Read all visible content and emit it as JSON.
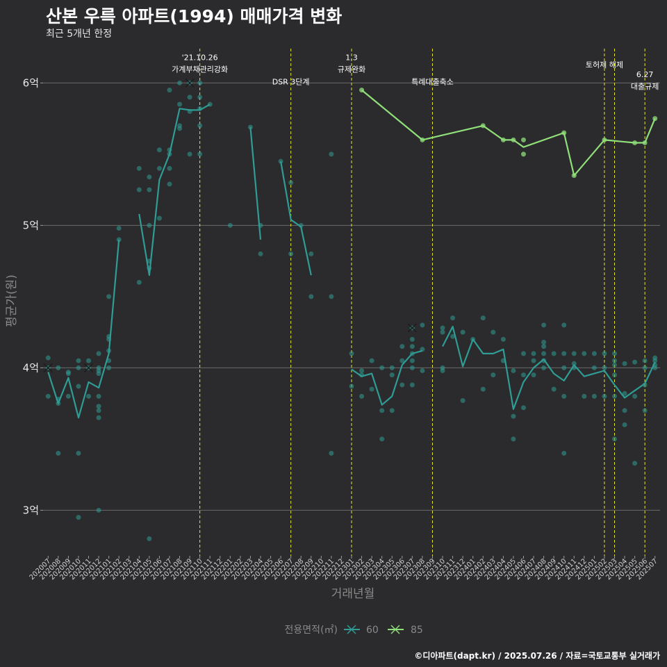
{
  "header": {
    "title": "산본 우륵 아파트(1994) 매매가격 변화",
    "subtitle": "최근 5개년 한정"
  },
  "caption": "©디아파트(dapt.kr) / 2025.07.26 / 자료=국토교통부 실거래가",
  "colors": {
    "s60": "#2f9c95",
    "s85": "#90e07a",
    "policy": "#e6e82a",
    "grid": "#6b6b6b"
  },
  "chart_data": {
    "type": "line",
    "xlabel": "거래년월",
    "ylabel": "평균가(원)",
    "ylim": [
      2.68,
      6.28
    ],
    "yticks": [
      {
        "v": 3,
        "label": "3억"
      },
      {
        "v": 4,
        "label": "4억"
      },
      {
        "v": 5,
        "label": "5억"
      },
      {
        "v": 6,
        "label": "6억"
      }
    ],
    "x": [
      "202007",
      "202008",
      "202009",
      "202010",
      "202011",
      "202012",
      "202101",
      "202102",
      "202103",
      "202104",
      "202105",
      "202106",
      "202107",
      "202108",
      "202109",
      "202110",
      "202111",
      "202112",
      "202201",
      "202202",
      "202203",
      "202204",
      "202205",
      "202206",
      "202207",
      "202208",
      "202209",
      "202210",
      "202211",
      "202212",
      "202301",
      "202302",
      "202303",
      "202304",
      "202305",
      "202306",
      "202307",
      "202308",
      "202309",
      "202310",
      "202311",
      "202312",
      "202401",
      "202402",
      "202403",
      "202404",
      "202405",
      "202406",
      "202407",
      "202408",
      "202409",
      "202410",
      "202411",
      "202412",
      "202501",
      "202502",
      "202503",
      "202504",
      "202505",
      "202506",
      "202507"
    ],
    "legend": {
      "title": "전용면적(㎡)",
      "items": [
        "60",
        "85"
      ]
    },
    "series": [
      {
        "name": "60",
        "segments": [
          [
            [
              "202007",
              3.97
            ],
            [
              "202008",
              3.75
            ],
            [
              "202009",
              3.93
            ],
            [
              "202010",
              3.65
            ],
            [
              "202011",
              3.9
            ],
            [
              "202012",
              3.86
            ],
            [
              "202101",
              4.1
            ],
            [
              "202102",
              4.9
            ]
          ],
          [
            [
              "202104",
              5.08
            ],
            [
              "202105",
              4.65
            ],
            [
              "202106",
              5.32
            ],
            [
              "202107",
              5.5
            ],
            [
              "202108",
              5.82
            ],
            [
              "202109",
              5.81
            ],
            [
              "202110",
              5.81
            ],
            [
              "202111",
              5.85
            ]
          ],
          [
            [
              "202203",
              5.69
            ],
            [
              "202204",
              4.9
            ]
          ],
          [
            [
              "202206",
              5.45
            ],
            [
              "202207",
              5.04
            ],
            [
              "202208",
              4.99
            ],
            [
              "202209",
              4.65
            ]
          ],
          [
            [
              "202301",
              3.99
            ],
            [
              "202302",
              3.94
            ],
            [
              "202303",
              3.96
            ],
            [
              "202304",
              3.74
            ],
            [
              "202305",
              3.8
            ],
            [
              "202306",
              4.02
            ],
            [
              "202307",
              4.1
            ],
            [
              "202308",
              4.12
            ]
          ],
          [
            [
              "202310",
              4.15
            ],
            [
              "202311",
              4.29
            ],
            [
              "202312",
              4.01
            ],
            [
              "202401",
              4.2
            ],
            [
              "202402",
              4.1
            ],
            [
              "202403",
              4.1
            ],
            [
              "202404",
              4.13
            ],
            [
              "202405",
              3.71
            ],
            [
              "202406",
              3.9
            ],
            [
              "202407",
              4.0
            ],
            [
              "202408",
              4.06
            ],
            [
              "202409",
              3.96
            ],
            [
              "202410",
              3.91
            ],
            [
              "202411",
              4.02
            ],
            [
              "202412",
              3.94
            ],
            [
              "202501",
              3.96
            ],
            [
              "202502",
              3.98
            ],
            [
              "202503",
              3.88
            ],
            [
              "202504",
              3.79
            ],
            [
              "202505",
              3.84
            ],
            [
              "202506",
              3.89
            ],
            [
              "202507",
              4.04
            ]
          ]
        ],
        "points": [
          [
            "202007",
            4.07
          ],
          [
            "202007",
            4.0
          ],
          [
            "202007",
            3.8
          ],
          [
            "202008",
            4.0
          ],
          [
            "202008",
            3.78
          ],
          [
            "202008",
            3.75
          ],
          [
            "202008",
            3.4
          ],
          [
            "202009",
            3.97
          ],
          [
            "202009",
            3.96
          ],
          [
            "202009",
            3.8
          ],
          [
            "202010",
            4.05
          ],
          [
            "202010",
            4.0
          ],
          [
            "202010",
            3.87
          ],
          [
            "202010",
            3.4
          ],
          [
            "202010",
            2.95
          ],
          [
            "202011",
            4.05
          ],
          [
            "202011",
            4.0
          ],
          [
            "202011",
            3.8
          ],
          [
            "202012",
            4.1
          ],
          [
            "202012",
            4.0
          ],
          [
            "202012",
            3.98
          ],
          [
            "202012",
            3.96
          ],
          [
            "202012",
            3.8
          ],
          [
            "202012",
            3.73
          ],
          [
            "202012",
            3.7
          ],
          [
            "202012",
            3.65
          ],
          [
            "202012",
            3.0
          ],
          [
            "202101",
            4.5
          ],
          [
            "202101",
            4.22
          ],
          [
            "202101",
            4.2
          ],
          [
            "202101",
            4.12
          ],
          [
            "202101",
            4.05
          ],
          [
            "202101",
            4.0
          ],
          [
            "202102",
            4.98
          ],
          [
            "202102",
            4.9
          ],
          [
            "202104",
            5.4
          ],
          [
            "202104",
            5.25
          ],
          [
            "202104",
            4.6
          ],
          [
            "202105",
            5.34
          ],
          [
            "202105",
            5.25
          ],
          [
            "202105",
            5.0
          ],
          [
            "202105",
            4.75
          ],
          [
            "202105",
            4.7
          ],
          [
            "202105",
            2.8
          ],
          [
            "202106",
            5.53
          ],
          [
            "202106",
            5.4
          ],
          [
            "202106",
            5.05
          ],
          [
            "202107",
            5.95
          ],
          [
            "202107",
            5.53
          ],
          [
            "202107",
            5.5
          ],
          [
            "202107",
            5.4
          ],
          [
            "202107",
            5.29
          ],
          [
            "202108",
            6.0
          ],
          [
            "202108",
            5.85
          ],
          [
            "202108",
            5.7
          ],
          [
            "202108",
            5.68
          ],
          [
            "202109",
            6.0
          ],
          [
            "202109",
            5.9
          ],
          [
            "202109",
            5.8
          ],
          [
            "202109",
            5.5
          ],
          [
            "202110",
            6.0
          ],
          [
            "202110",
            5.9
          ],
          [
            "202110",
            5.82
          ],
          [
            "202110",
            5.7
          ],
          [
            "202110",
            5.5
          ],
          [
            "202111",
            5.85
          ],
          [
            "202201",
            5.0
          ],
          [
            "202203",
            5.69
          ],
          [
            "202204",
            5.0
          ],
          [
            "202204",
            4.8
          ],
          [
            "202206",
            5.45
          ],
          [
            "202207",
            5.3
          ],
          [
            "202207",
            4.8
          ],
          [
            "202208",
            5.0
          ],
          [
            "202209",
            4.8
          ],
          [
            "202209",
            4.5
          ],
          [
            "202211",
            5.5
          ],
          [
            "202211",
            4.5
          ],
          [
            "202211",
            3.4
          ],
          [
            "202301",
            4.1
          ],
          [
            "202301",
            3.87
          ],
          [
            "202302",
            3.98
          ],
          [
            "202302",
            3.95
          ],
          [
            "202302",
            3.8
          ],
          [
            "202303",
            4.05
          ],
          [
            "202303",
            3.85
          ],
          [
            "202304",
            4.0
          ],
          [
            "202304",
            3.7
          ],
          [
            "202304",
            3.5
          ],
          [
            "202305",
            4.0
          ],
          [
            "202305",
            3.95
          ],
          [
            "202305",
            3.7
          ],
          [
            "202306",
            4.15
          ],
          [
            "202306",
            4.05
          ],
          [
            "202306",
            3.88
          ],
          [
            "202307",
            4.28
          ],
          [
            "202307",
            4.2
          ],
          [
            "202307",
            4.15
          ],
          [
            "202307",
            4.1
          ],
          [
            "202307",
            4.05
          ],
          [
            "202307",
            4.0
          ],
          [
            "202307",
            3.88
          ],
          [
            "202308",
            4.3
          ],
          [
            "202308",
            4.13
          ],
          [
            "202308",
            3.98
          ],
          [
            "202310",
            4.28
          ],
          [
            "202310",
            4.25
          ],
          [
            "202310",
            4.0
          ],
          [
            "202310",
            3.98
          ],
          [
            "202311",
            4.35
          ],
          [
            "202311",
            4.22
          ],
          [
            "202312",
            4.25
          ],
          [
            "202312",
            3.77
          ],
          [
            "202401",
            4.2
          ],
          [
            "202402",
            4.35
          ],
          [
            "202402",
            3.85
          ],
          [
            "202403",
            4.25
          ],
          [
            "202403",
            3.95
          ],
          [
            "202404",
            4.2
          ],
          [
            "202404",
            4.05
          ],
          [
            "202405",
            3.98
          ],
          [
            "202405",
            3.66
          ],
          [
            "202405",
            3.5
          ],
          [
            "202406",
            4.1
          ],
          [
            "202406",
            3.95
          ],
          [
            "202406",
            3.72
          ],
          [
            "202407",
            4.1
          ],
          [
            "202407",
            4.05
          ],
          [
            "202407",
            3.95
          ],
          [
            "202408",
            4.3
          ],
          [
            "202408",
            4.18
          ],
          [
            "202408",
            4.15
          ],
          [
            "202408",
            4.1
          ],
          [
            "202408",
            4.05
          ],
          [
            "202408",
            4.0
          ],
          [
            "202409",
            4.1
          ],
          [
            "202409",
            3.85
          ],
          [
            "202410",
            4.3
          ],
          [
            "202410",
            4.1
          ],
          [
            "202410",
            4.0
          ],
          [
            "202410",
            3.8
          ],
          [
            "202410",
            3.4
          ],
          [
            "202411",
            4.1
          ],
          [
            "202411",
            4.03
          ],
          [
            "202411",
            4.0
          ],
          [
            "202412",
            4.1
          ],
          [
            "202412",
            3.8
          ],
          [
            "202501",
            4.1
          ],
          [
            "202501",
            4.0
          ],
          [
            "202501",
            3.8
          ],
          [
            "202502",
            4.1
          ],
          [
            "202502",
            4.0
          ],
          [
            "202502",
            3.8
          ],
          [
            "202503",
            4.1
          ],
          [
            "202503",
            4.05
          ],
          [
            "202503",
            4.02
          ],
          [
            "202503",
            3.95
          ],
          [
            "202503",
            3.8
          ],
          [
            "202503",
            3.5
          ],
          [
            "202504",
            4.03
          ],
          [
            "202504",
            3.82
          ],
          [
            "202504",
            3.7
          ],
          [
            "202504",
            3.6
          ],
          [
            "202505",
            4.04
          ],
          [
            "202505",
            3.8
          ],
          [
            "202505",
            3.33
          ],
          [
            "202506",
            4.05
          ],
          [
            "202506",
            4.0
          ],
          [
            "202506",
            3.88
          ],
          [
            "202506",
            3.7
          ],
          [
            "202507",
            4.07
          ],
          [
            "202507",
            4.05
          ],
          [
            "202507",
            4.02
          ],
          [
            "202507",
            4.0
          ]
        ],
        "cross_marks": [
          [
            "202007",
            4.0
          ],
          [
            "202011",
            4.0
          ],
          [
            "202109",
            6.0
          ],
          [
            "202307",
            4.28
          ]
        ]
      },
      {
        "name": "85",
        "segments": [
          [
            [
              "202302",
              5.95
            ],
            [
              "202308",
              5.6
            ],
            [
              "202402",
              5.7
            ],
            [
              "202404",
              5.6
            ],
            [
              "202405",
              5.6
            ],
            [
              "202406",
              5.55
            ],
            [
              "202410",
              5.65
            ],
            [
              "202411",
              5.35
            ],
            [
              "202502",
              5.6
            ],
            [
              "202505",
              5.58
            ],
            [
              "202506",
              5.58
            ],
            [
              "202507",
              5.75
            ]
          ]
        ],
        "points": [
          [
            "202302",
            5.95
          ],
          [
            "202308",
            5.6
          ],
          [
            "202402",
            5.7
          ],
          [
            "202404",
            5.6
          ],
          [
            "202405",
            5.6
          ],
          [
            "202406",
            5.6
          ],
          [
            "202406",
            5.5
          ],
          [
            "202410",
            5.65
          ],
          [
            "202411",
            5.35
          ],
          [
            "202502",
            5.6
          ],
          [
            "202505",
            5.58
          ],
          [
            "202506",
            5.58
          ],
          [
            "202507",
            5.75
          ]
        ]
      }
    ],
    "annotations": [
      {
        "x": "202110",
        "lines": [
          "'21.10.26",
          "가계부채관리강화"
        ],
        "label_y": 6.16
      },
      {
        "x": "202207",
        "lines": [
          "DSR 3단계"
        ],
        "label_y": 5.99
      },
      {
        "x": "202301",
        "lines": [
          "1.3",
          "규제완화"
        ],
        "label_y": 6.16
      },
      {
        "x": "202309",
        "lines": [
          "특례대출축소"
        ],
        "label_y": 5.99
      },
      {
        "x": "202502",
        "lines": [
          "토허제 해제"
        ],
        "label_y": 6.11
      },
      {
        "x": "202503",
        "lines": [],
        "label_y": 6.11
      },
      {
        "x": "202506",
        "lines": [
          "6.27",
          "대출규제"
        ],
        "label_y": 6.04
      }
    ]
  }
}
